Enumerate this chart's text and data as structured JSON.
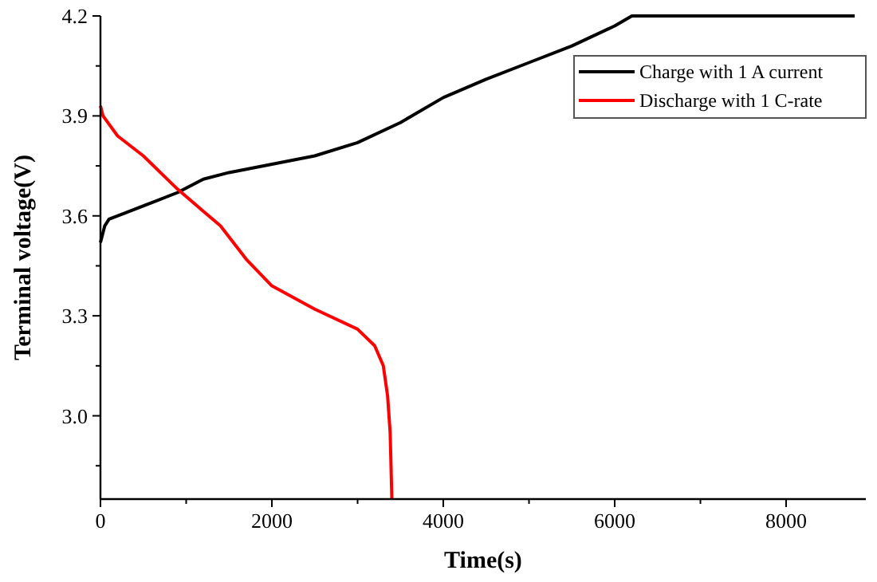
{
  "chart_data": {
    "type": "line",
    "xlabel": "Time(s)",
    "ylabel": "Terminal voltage(V)",
    "xlim": [
      0,
      8930
    ],
    "xticks": [
      0,
      {
        "value": 1000,
        "label": null
      },
      2000,
      {
        "value": 3000,
        "label": null
      },
      4000,
      {
        "value": 5000,
        "label": null
      },
      6000,
      {
        "value": 7000,
        "label": null
      },
      8000
    ],
    "ylim": [
      2.75,
      4.2
    ],
    "yticks": [
      {
        "value": 2.85,
        "label": null
      },
      {
        "value": 3,
        "label": "3.0"
      },
      {
        "value": 3.15,
        "label": null
      },
      3.3,
      {
        "value": 3.45,
        "label": null
      },
      3.6,
      {
        "value": 3.75,
        "label": null
      },
      3.9,
      {
        "value": 4.05,
        "label": null
      },
      4.2
    ],
    "legend": "top right",
    "grid": false,
    "marker": "none",
    "line_style": "solid",
    "series": [
      {
        "name": "Charge with 1 A current",
        "color": "#000000",
        "x": [
          0,
          50,
          100,
          300,
          600,
          900,
          1200,
          1500,
          2000,
          2500,
          3000,
          3500,
          4000,
          4500,
          5000,
          5500,
          6000,
          6200,
          8800
        ],
        "values": [
          3.52,
          3.57,
          3.59,
          3.61,
          3.64,
          3.67,
          3.71,
          3.73,
          3.755,
          3.78,
          3.82,
          3.88,
          3.955,
          4.01,
          4.06,
          4.11,
          4.17,
          4.2,
          4.2
        ]
      },
      {
        "name": "Discharge with 1 C-rate",
        "color": "#ff0000",
        "x": [
          0,
          30,
          200,
          500,
          900,
          1400,
          1700,
          2000,
          2500,
          3000,
          3200,
          3300,
          3350,
          3380,
          3400
        ],
        "values": [
          3.93,
          3.9,
          3.84,
          3.78,
          3.68,
          3.57,
          3.47,
          3.39,
          3.32,
          3.26,
          3.21,
          3.15,
          3.06,
          2.95,
          2.75
        ]
      }
    ]
  }
}
